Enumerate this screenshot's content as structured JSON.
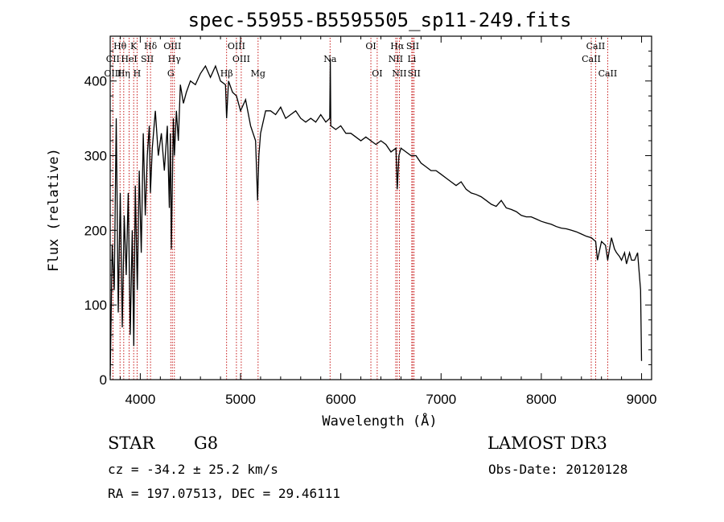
{
  "chart_data": {
    "type": "line",
    "title": "spec-55955-B5595505_sp11-249.fits",
    "xlabel": "Wavelength (Å)",
    "ylabel": "Flux (relative)",
    "xlim": [
      3700,
      9100
    ],
    "ylim": [
      0,
      460
    ],
    "xticks": [
      4000,
      5000,
      6000,
      7000,
      8000,
      9000
    ],
    "yticks": [
      0,
      100,
      200,
      300,
      400
    ],
    "grid": false,
    "series": [
      {
        "name": "flux",
        "x": [
          3700,
          3720,
          3740,
          3760,
          3780,
          3800,
          3820,
          3840,
          3860,
          3880,
          3900,
          3920,
          3935,
          3950,
          3970,
          3990,
          4010,
          4030,
          4050,
          4070,
          4090,
          4101,
          4120,
          4150,
          4180,
          4210,
          4240,
          4270,
          4290,
          4300,
          4310,
          4330,
          4340,
          4360,
          4380,
          4400,
          4430,
          4460,
          4500,
          4550,
          4600,
          4650,
          4700,
          4750,
          4800,
          4850,
          4861,
          4880,
          4920,
          4960,
          5000,
          5050,
          5100,
          5150,
          5170,
          5183,
          5200,
          5250,
          5300,
          5350,
          5400,
          5450,
          5500,
          5550,
          5600,
          5650,
          5700,
          5750,
          5800,
          5850,
          5890,
          5895,
          5900,
          5950,
          6000,
          6050,
          6100,
          6150,
          6200,
          6250,
          6300,
          6350,
          6400,
          6450,
          6500,
          6550,
          6563,
          6580,
          6600,
          6650,
          6700,
          6750,
          6800,
          6850,
          6900,
          6950,
          7000,
          7050,
          7100,
          7150,
          7200,
          7250,
          7300,
          7350,
          7400,
          7450,
          7500,
          7550,
          7600,
          7650,
          7700,
          7750,
          7800,
          7850,
          7900,
          7950,
          8000,
          8050,
          8100,
          8150,
          8200,
          8250,
          8300,
          8350,
          8400,
          8450,
          8500,
          8542,
          8560,
          8600,
          8640,
          8662,
          8680,
          8700,
          8730,
          8750,
          8780,
          8800,
          8830,
          8850,
          8880,
          8900,
          8930,
          8960,
          8990,
          9000
        ],
        "values": [
          5,
          180,
          120,
          350,
          90,
          250,
          70,
          220,
          140,
          250,
          60,
          200,
          45,
          260,
          120,
          280,
          170,
          330,
          220,
          300,
          340,
          250,
          310,
          360,
          300,
          330,
          280,
          340,
          230,
          330,
          175,
          350,
          300,
          360,
          320,
          395,
          370,
          385,
          400,
          395,
          410,
          420,
          405,
          420,
          400,
          395,
          350,
          400,
          385,
          380,
          360,
          375,
          340,
          320,
          240,
          300,
          330,
          360,
          360,
          355,
          365,
          350,
          355,
          360,
          350,
          345,
          350,
          345,
          355,
          345,
          350,
          430,
          340,
          335,
          340,
          330,
          330,
          325,
          320,
          325,
          320,
          315,
          320,
          315,
          305,
          310,
          255,
          300,
          310,
          305,
          300,
          300,
          290,
          285,
          280,
          280,
          275,
          270,
          265,
          260,
          265,
          255,
          250,
          248,
          245,
          240,
          235,
          232,
          240,
          230,
          228,
          225,
          220,
          218,
          218,
          215,
          212,
          210,
          208,
          205,
          203,
          202,
          200,
          198,
          195,
          192,
          190,
          185,
          160,
          185,
          180,
          160,
          175,
          190,
          175,
          170,
          165,
          160,
          170,
          155,
          170,
          160,
          160,
          170,
          120,
          25
        ]
      }
    ],
    "line_markers": [
      {
        "label": "Hθ",
        "wavelength": 3798,
        "row": 1
      },
      {
        "label": "CII",
        "wavelength": 3727,
        "row": 2
      },
      {
        "label": "OIII",
        "wavelength": 3727,
        "row": 3
      },
      {
        "label": "Hη",
        "wavelength": 3835,
        "row": 3
      },
      {
        "label": "HeI",
        "wavelength": 3889,
        "row": 2
      },
      {
        "label": "K",
        "wavelength": 3934,
        "row": 1
      },
      {
        "label": "H",
        "wavelength": 3968,
        "row": 3
      },
      {
        "label": "SII",
        "wavelength": 4070,
        "row": 2
      },
      {
        "label": "Hδ",
        "wavelength": 4102,
        "row": 1
      },
      {
        "label": "OIII",
        "wavelength": 4320,
        "row": 1
      },
      {
        "label": "Hγ",
        "wavelength": 4340,
        "row": 2
      },
      {
        "label": "G",
        "wavelength": 4304,
        "row": 3
      },
      {
        "label": "Hβ",
        "wavelength": 4861,
        "row": 3
      },
      {
        "label": "OIII",
        "wavelength": 4959,
        "row": 1
      },
      {
        "label": "OIII",
        "wavelength": 5007,
        "row": 2
      },
      {
        "label": "Mg",
        "wavelength": 5175,
        "row": 3
      },
      {
        "label": "Na",
        "wavelength": 5893,
        "row": 2
      },
      {
        "label": "OI",
        "wavelength": 6300,
        "row": 1
      },
      {
        "label": "OI",
        "wavelength": 6363,
        "row": 3
      },
      {
        "label": "Hα",
        "wavelength": 6563,
        "row": 1
      },
      {
        "label": "NII",
        "wavelength": 6548,
        "row": 2
      },
      {
        "label": "NII",
        "wavelength": 6584,
        "row": 3
      },
      {
        "label": "SII",
        "wavelength": 6717,
        "row": 1
      },
      {
        "label": "Li",
        "wavelength": 6708,
        "row": 2
      },
      {
        "label": "SII",
        "wavelength": 6731,
        "row": 3
      },
      {
        "label": "CaII",
        "wavelength": 8542,
        "row": 1
      },
      {
        "label": "CaII",
        "wavelength": 8498,
        "row": 2
      },
      {
        "label": "CaII",
        "wavelength": 8662,
        "row": 3
      }
    ]
  },
  "info": {
    "object_class": "STAR",
    "subclass": "G8",
    "survey": "LAMOST DR3",
    "cz": "cz = -34.2 ± 25.2 km/s",
    "obs_date": "Obs-Date: 20120128",
    "coords": "RA = 197.07513, DEC =  29.46111"
  },
  "colors": {
    "line": "#000000",
    "marker": "#c00000"
  }
}
